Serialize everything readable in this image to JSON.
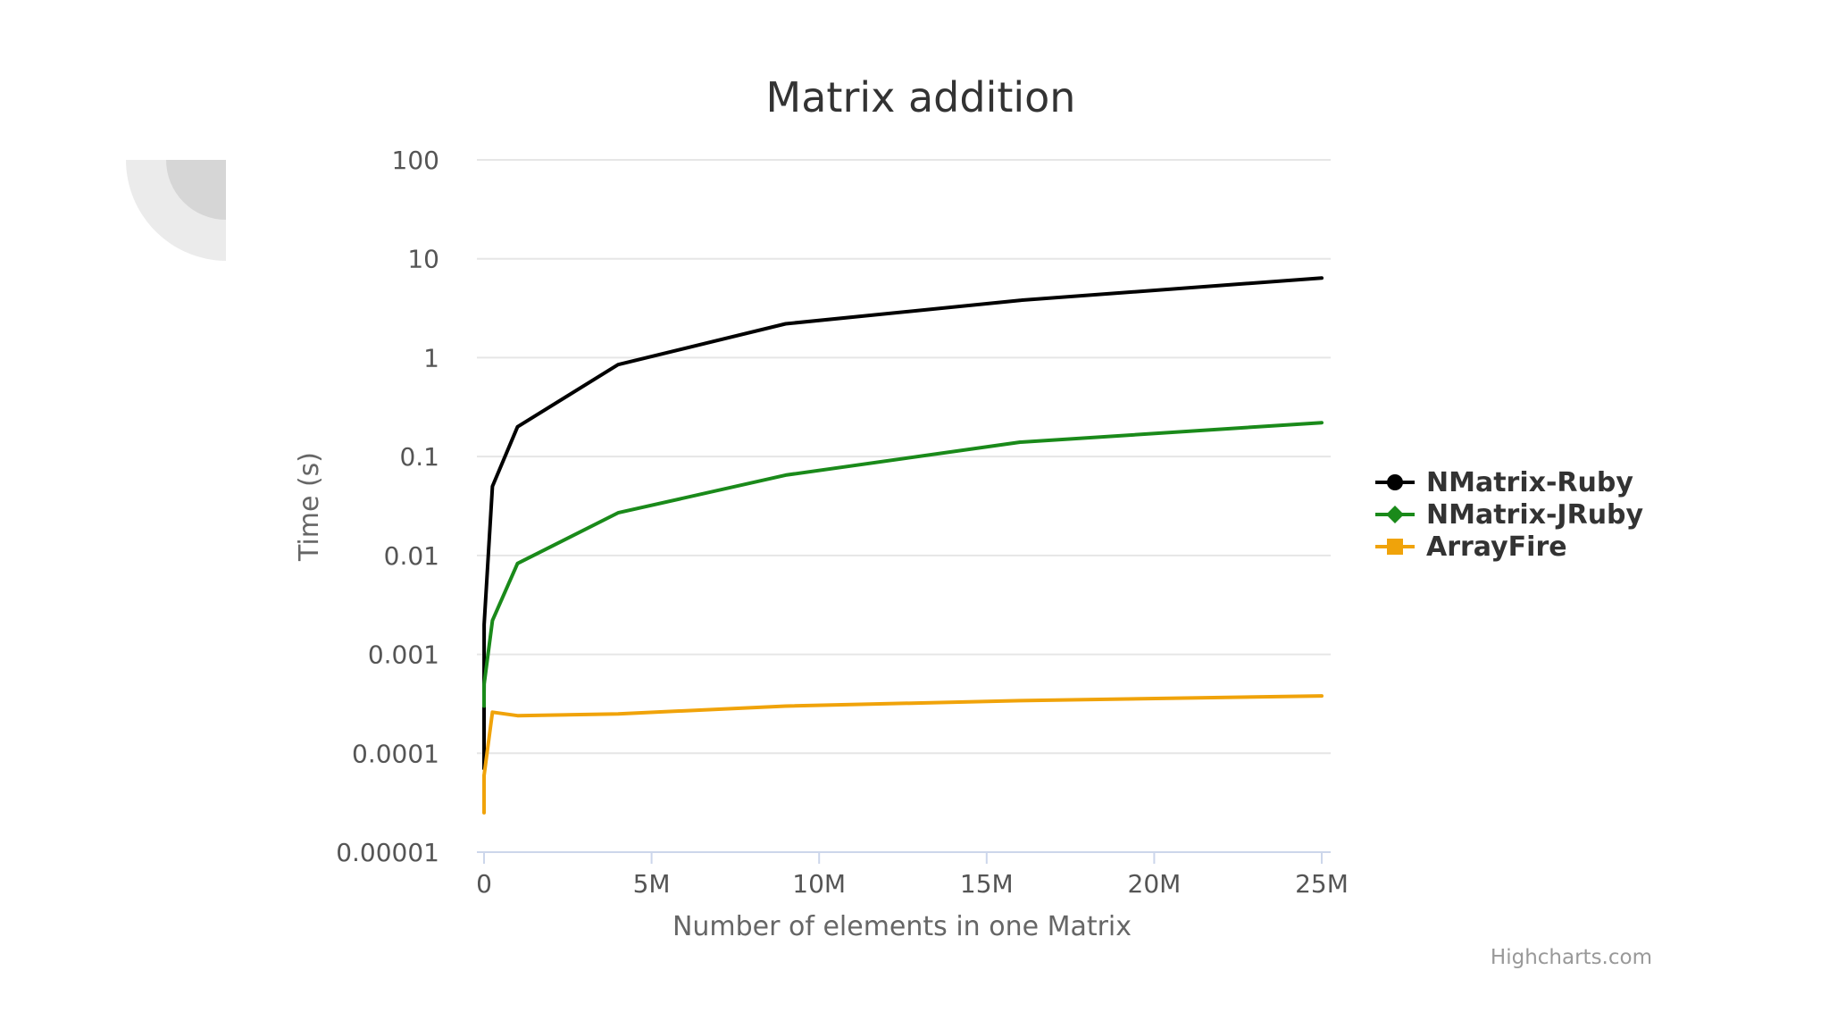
{
  "chart_data": {
    "type": "line",
    "title": "Matrix addition",
    "xlabel": "Number of elements in one Matrix",
    "ylabel": "Time (s)",
    "xlim": [
      0,
      25000000
    ],
    "ylim": [
      1e-05,
      100
    ],
    "y_scale": "log",
    "x_ticks": [
      {
        "value": 0,
        "label": "0"
      },
      {
        "value": 5000000,
        "label": "5M"
      },
      {
        "value": 10000000,
        "label": "10M"
      },
      {
        "value": 15000000,
        "label": "15M"
      },
      {
        "value": 20000000,
        "label": "20M"
      },
      {
        "value": 25000000,
        "label": "25M"
      }
    ],
    "y_ticks": [
      {
        "value": 1e-05,
        "label": "0.00001"
      },
      {
        "value": 0.0001,
        "label": "0.0001"
      },
      {
        "value": 0.001,
        "label": "0.001"
      },
      {
        "value": 0.01,
        "label": "0.01"
      },
      {
        "value": 0.1,
        "label": "0.1"
      },
      {
        "value": 1,
        "label": "1"
      },
      {
        "value": 10,
        "label": "10"
      },
      {
        "value": 100,
        "label": "100"
      }
    ],
    "grid": true,
    "legend_position": "right",
    "series": [
      {
        "name": "NMatrix-Ruby",
        "color": "#000000",
        "marker": "circle",
        "points": [
          [
            4,
            7e-05
          ],
          [
            100,
            0.0002
          ],
          [
            2500,
            0.002
          ],
          [
            250000,
            0.05
          ],
          [
            1000000,
            0.2
          ],
          [
            4000000,
            0.85
          ],
          [
            9000000,
            2.2
          ],
          [
            16000000,
            3.8
          ],
          [
            25000000,
            6.4
          ]
        ]
      },
      {
        "name": "NMatrix-JRuby",
        "color": "#1a8a1a",
        "marker": "diamond",
        "points": [
          [
            4,
            0.0003
          ],
          [
            100,
            0.0004
          ],
          [
            2500,
            0.0005
          ],
          [
            250000,
            0.0022
          ],
          [
            1000000,
            0.0083
          ],
          [
            4000000,
            0.027
          ],
          [
            9000000,
            0.065
          ],
          [
            16000000,
            0.14
          ],
          [
            25000000,
            0.22
          ]
        ]
      },
      {
        "name": "ArrayFire",
        "color": "#f0a30a",
        "marker": "square",
        "points": [
          [
            4,
            2.5e-05
          ],
          [
            100,
            6e-05
          ],
          [
            2500,
            6e-05
          ],
          [
            250000,
            0.00026
          ],
          [
            1000000,
            0.00024
          ],
          [
            4000000,
            0.00025
          ],
          [
            9000000,
            0.0003
          ],
          [
            16000000,
            0.00034
          ],
          [
            25000000,
            0.00038
          ]
        ]
      }
    ],
    "credits": "Highcharts.com"
  }
}
